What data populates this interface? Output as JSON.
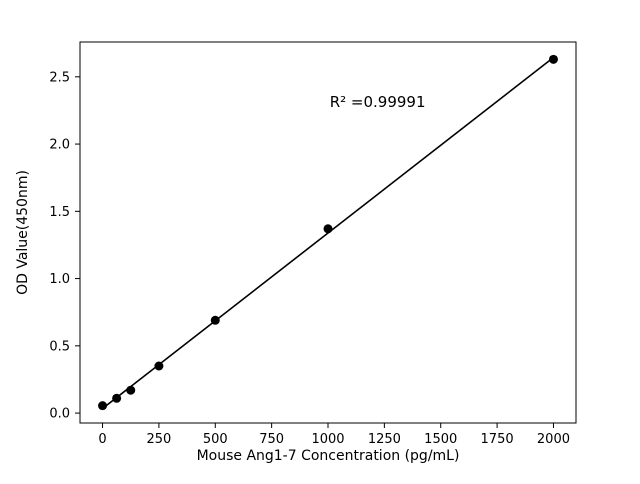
{
  "chart_data": {
    "type": "scatter",
    "title": "",
    "xlabel": "Mouse Ang1-7 Concentration (pg/mL)",
    "ylabel": "OD Value(450nm)",
    "annotation": "R² =0.99991",
    "x": [
      0,
      62.5,
      125,
      250,
      500,
      1000,
      2000
    ],
    "y": [
      0.055,
      0.11,
      0.17,
      0.35,
      0.69,
      1.37,
      2.63
    ],
    "xticks": [
      0,
      250,
      500,
      750,
      1000,
      1250,
      1500,
      1750,
      2000
    ],
    "yticks": [
      0.0,
      0.5,
      1.0,
      1.5,
      2.0,
      2.5
    ],
    "xlim_margin_frac": 0.05,
    "ylim_margin_frac": 0.05,
    "marker_color": "#000000",
    "line_color": "#000000",
    "background_color": "#ffffff",
    "grid": false,
    "legend_position": "none",
    "series_name": "standard-curve"
  }
}
